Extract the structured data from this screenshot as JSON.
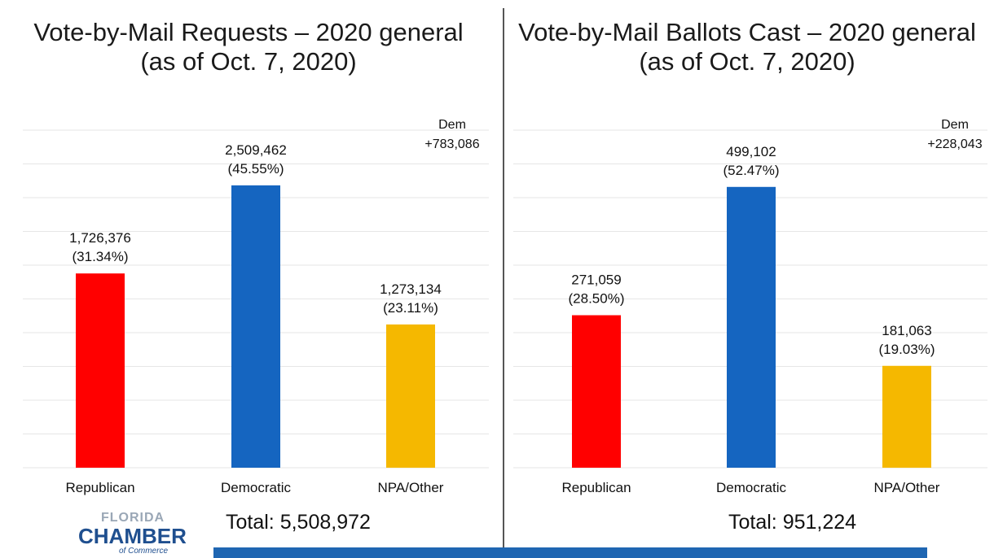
{
  "chart_data": [
    {
      "type": "bar",
      "title": "Vote-by-Mail Requests – 2020 general",
      "subtitle": "(as of Oct. 7, 2020)",
      "categories": [
        "Republican",
        "Democratic",
        "NPA/Other"
      ],
      "values": [
        1726376,
        2509462,
        1273134
      ],
      "value_labels": [
        "1,726,376",
        "2,509,462",
        "1,273,134"
      ],
      "pct_labels": [
        "(31.34%)",
        "(45.55%)",
        "(23.11%)"
      ],
      "colors": [
        "#ff0000",
        "#1565c0",
        "#f5b800"
      ],
      "annotation": [
        "Dem",
        "+783,086"
      ],
      "total": "Total: 5,508,972",
      "ylim": [
        0,
        3000000
      ],
      "grid": true,
      "xlabel": "",
      "ylabel": ""
    },
    {
      "type": "bar",
      "title": "Vote-by-Mail Ballots Cast – 2020 general",
      "subtitle": "(as of Oct. 7, 2020)",
      "categories": [
        "Republican",
        "Democratic",
        "NPA/Other"
      ],
      "values": [
        271059,
        499102,
        181063
      ],
      "value_labels": [
        "271,059",
        "499,102",
        "181,063"
      ],
      "pct_labels": [
        "(28.50%)",
        "(52.47%)",
        "(19.03%)"
      ],
      "colors": [
        "#ff0000",
        "#1565c0",
        "#f5b800"
      ],
      "annotation": [
        "Dem",
        "+228,043"
      ],
      "total": "Total: 951,224",
      "ylim": [
        0,
        600000
      ],
      "grid": true,
      "xlabel": "",
      "ylabel": ""
    }
  ],
  "logo": {
    "line1": "FLORIDA",
    "line2": "CHAMBER",
    "line3": "of Commerce"
  },
  "accent_color": "#1f66b2"
}
